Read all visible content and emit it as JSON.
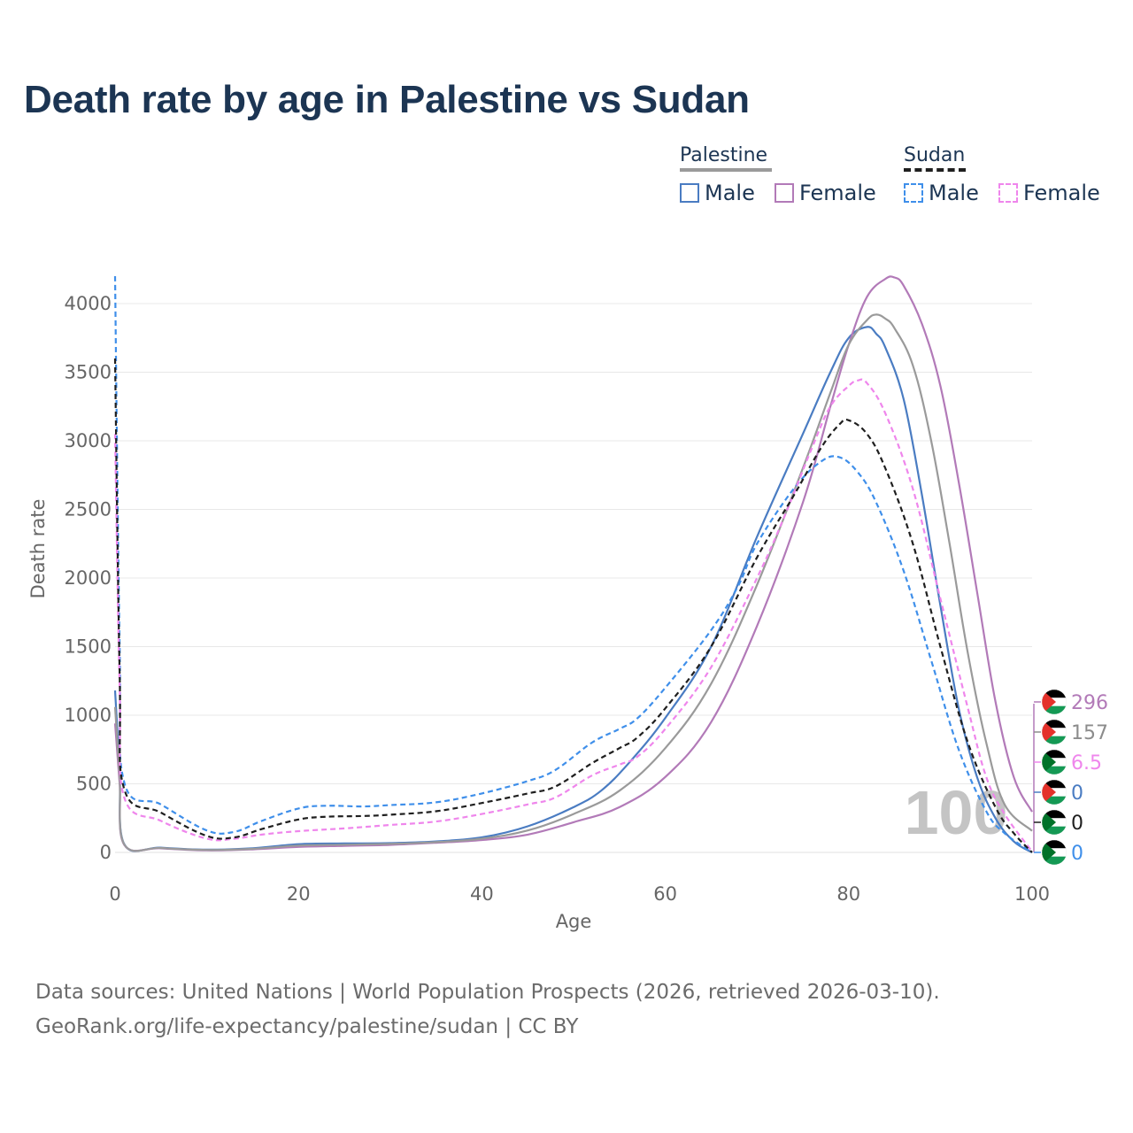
{
  "title": "Death rate by age in Palestine vs Sudan",
  "legend": {
    "groups": [
      {
        "label": "Palestine",
        "items": [
          {
            "label": "Male",
            "color": "#4a7cc2",
            "dashed": false
          },
          {
            "label": "Female",
            "color": "#b27ab8",
            "dashed": false
          }
        ]
      },
      {
        "label": "Sudan",
        "items": [
          {
            "label": "Male",
            "color": "#3f8fea",
            "dashed": true
          },
          {
            "label": "Female",
            "color": "#ef86ec",
            "dashed": true
          }
        ]
      }
    ]
  },
  "colors": {
    "palestine_male": "#4a7cc2",
    "palestine_female": "#b27ab8",
    "palestine_total": "#9a9a9a",
    "sudan_male": "#3f8fea",
    "sudan_female": "#ef86ec",
    "sudan_total": "#1f1f1f",
    "grid": "#e8e8e8",
    "title": "#1c3553"
  },
  "current_age_overlay": "100",
  "end_labels": [
    {
      "value": "296",
      "country": "Palestine",
      "series": "Palestine Female",
      "color": "#b27ab8"
    },
    {
      "value": "157",
      "country": "Palestine",
      "series": "Palestine Total",
      "color": "#8c8c8c"
    },
    {
      "value": "6.5",
      "country": "Sudan",
      "series": "Sudan Female",
      "color": "#ef86ec"
    },
    {
      "value": "0",
      "country": "Palestine",
      "series": "Palestine Male",
      "color": "#4a7cc2"
    },
    {
      "value": "0",
      "country": "Sudan",
      "series": "Sudan Total",
      "color": "#1f1f1f"
    },
    {
      "value": "0",
      "country": "Sudan",
      "series": "Sudan Male",
      "color": "#3f8fea"
    }
  ],
  "footer": {
    "line1": "Data sources: United Nations | World Population Prospects (2026, retrieved 2026-03-10).",
    "line2": "GeoRank.org/life-expectancy/palestine/sudan | CC BY"
  },
  "chart_data": {
    "type": "line",
    "title": "Death rate by age in Palestine vs Sudan",
    "xlabel": "Age",
    "ylabel": "Death rate",
    "xlim": [
      0,
      100
    ],
    "ylim": [
      0,
      4200
    ],
    "xticks": [
      0,
      20,
      40,
      60,
      80,
      100
    ],
    "yticks": [
      0,
      500,
      1000,
      1500,
      2000,
      2500,
      3000,
      3500,
      4000
    ],
    "grid": true,
    "legend_position": "top-right",
    "series": [
      {
        "name": "Palestine Male",
        "country": "Palestine",
        "color": "#4a7cc2",
        "dashed": false,
        "width": 2.2,
        "points": [
          [
            0,
            1180
          ],
          [
            0.5,
            600
          ],
          [
            1,
            60
          ],
          [
            5,
            35
          ],
          [
            10,
            20
          ],
          [
            15,
            30
          ],
          [
            20,
            60
          ],
          [
            25,
            65
          ],
          [
            30,
            68
          ],
          [
            35,
            80
          ],
          [
            40,
            110
          ],
          [
            45,
            190
          ],
          [
            50,
            330
          ],
          [
            53,
            450
          ],
          [
            56,
            650
          ],
          [
            60,
            980
          ],
          [
            65,
            1500
          ],
          [
            70,
            2300
          ],
          [
            75,
            3050
          ],
          [
            78,
            3500
          ],
          [
            80,
            3750
          ],
          [
            82,
            3830
          ],
          [
            83,
            3780
          ],
          [
            84,
            3680
          ],
          [
            86,
            3300
          ],
          [
            88,
            2600
          ],
          [
            90,
            1800
          ],
          [
            92,
            1050
          ],
          [
            94,
            550
          ],
          [
            96,
            250
          ],
          [
            98,
            80
          ],
          [
            100,
            0
          ]
        ]
      },
      {
        "name": "Palestine Female",
        "country": "Palestine",
        "color": "#b27ab8",
        "dashed": false,
        "width": 2.2,
        "points": [
          [
            0,
            940
          ],
          [
            0.5,
            500
          ],
          [
            1,
            55
          ],
          [
            5,
            30
          ],
          [
            10,
            15
          ],
          [
            15,
            22
          ],
          [
            20,
            40
          ],
          [
            25,
            48
          ],
          [
            30,
            55
          ],
          [
            35,
            70
          ],
          [
            40,
            90
          ],
          [
            45,
            130
          ],
          [
            50,
            220
          ],
          [
            55,
            330
          ],
          [
            60,
            550
          ],
          [
            65,
            950
          ],
          [
            70,
            1650
          ],
          [
            75,
            2550
          ],
          [
            78,
            3250
          ],
          [
            80,
            3700
          ],
          [
            82,
            4050
          ],
          [
            84,
            4180
          ],
          [
            85,
            4190
          ],
          [
            86,
            4130
          ],
          [
            88,
            3850
          ],
          [
            90,
            3400
          ],
          [
            92,
            2700
          ],
          [
            94,
            1900
          ],
          [
            96,
            1100
          ],
          [
            98,
            550
          ],
          [
            100,
            296
          ]
        ]
      },
      {
        "name": "Palestine Total",
        "country": "Palestine",
        "color": "#9a9a9a",
        "dashed": false,
        "width": 2.2,
        "points": [
          [
            0,
            1060
          ],
          [
            0.5,
            550
          ],
          [
            1,
            58
          ],
          [
            5,
            32
          ],
          [
            10,
            18
          ],
          [
            15,
            26
          ],
          [
            20,
            50
          ],
          [
            25,
            56
          ],
          [
            30,
            62
          ],
          [
            35,
            75
          ],
          [
            40,
            100
          ],
          [
            45,
            160
          ],
          [
            50,
            280
          ],
          [
            55,
            450
          ],
          [
            60,
            760
          ],
          [
            65,
            1230
          ],
          [
            70,
            1950
          ],
          [
            75,
            2800
          ],
          [
            78,
            3350
          ],
          [
            80,
            3700
          ],
          [
            82,
            3880
          ],
          [
            83,
            3920
          ],
          [
            84,
            3890
          ],
          [
            85,
            3820
          ],
          [
            87,
            3550
          ],
          [
            89,
            3000
          ],
          [
            91,
            2250
          ],
          [
            93,
            1450
          ],
          [
            95,
            800
          ],
          [
            97,
            350
          ],
          [
            100,
            157
          ]
        ]
      },
      {
        "name": "Sudan Male",
        "country": "Sudan",
        "color": "#3f8fea",
        "dashed": true,
        "width": 2.2,
        "points": [
          [
            0,
            4200
          ],
          [
            0.5,
            1500
          ],
          [
            1,
            510
          ],
          [
            5,
            350
          ],
          [
            10,
            160
          ],
          [
            13,
            150
          ],
          [
            16,
            230
          ],
          [
            20,
            320
          ],
          [
            23,
            340
          ],
          [
            27,
            335
          ],
          [
            30,
            345
          ],
          [
            35,
            365
          ],
          [
            40,
            430
          ],
          [
            45,
            520
          ],
          [
            48,
            600
          ],
          [
            52,
            800
          ],
          [
            55,
            900
          ],
          [
            57,
            980
          ],
          [
            60,
            1200
          ],
          [
            65,
            1620
          ],
          [
            68,
            1950
          ],
          [
            70,
            2250
          ],
          [
            74,
            2650
          ],
          [
            77,
            2850
          ],
          [
            79,
            2880
          ],
          [
            81,
            2770
          ],
          [
            83,
            2550
          ],
          [
            86,
            2050
          ],
          [
            89,
            1400
          ],
          [
            92,
            750
          ],
          [
            95,
            300
          ],
          [
            97,
            140
          ],
          [
            100,
            0
          ]
        ]
      },
      {
        "name": "Sudan Female",
        "country": "Sudan",
        "color": "#ef86ec",
        "dashed": true,
        "width": 2.2,
        "points": [
          [
            0,
            3050
          ],
          [
            0.5,
            1200
          ],
          [
            1,
            400
          ],
          [
            5,
            230
          ],
          [
            10,
            100
          ],
          [
            13,
            100
          ],
          [
            16,
            130
          ],
          [
            20,
            155
          ],
          [
            25,
            175
          ],
          [
            30,
            200
          ],
          [
            35,
            225
          ],
          [
            40,
            280
          ],
          [
            45,
            350
          ],
          [
            48,
            400
          ],
          [
            52,
            560
          ],
          [
            55,
            640
          ],
          [
            57,
            700
          ],
          [
            60,
            900
          ],
          [
            65,
            1350
          ],
          [
            70,
            2000
          ],
          [
            73,
            2450
          ],
          [
            76,
            2950
          ],
          [
            78,
            3250
          ],
          [
            80,
            3400
          ],
          [
            81,
            3440
          ],
          [
            82,
            3420
          ],
          [
            84,
            3200
          ],
          [
            87,
            2650
          ],
          [
            90,
            1850
          ],
          [
            93,
            1050
          ],
          [
            95,
            550
          ],
          [
            97,
            280
          ],
          [
            100,
            6.5
          ]
        ]
      },
      {
        "name": "Sudan Total",
        "country": "Sudan",
        "color": "#1f1f1f",
        "dashed": true,
        "width": 2.2,
        "points": [
          [
            0,
            3600
          ],
          [
            0.5,
            1300
          ],
          [
            1,
            460
          ],
          [
            5,
            290
          ],
          [
            10,
            120
          ],
          [
            13,
            110
          ],
          [
            16,
            170
          ],
          [
            20,
            240
          ],
          [
            23,
            260
          ],
          [
            27,
            265
          ],
          [
            30,
            275
          ],
          [
            35,
            300
          ],
          [
            40,
            360
          ],
          [
            45,
            430
          ],
          [
            48,
            480
          ],
          [
            52,
            650
          ],
          [
            55,
            760
          ],
          [
            57,
            840
          ],
          [
            60,
            1050
          ],
          [
            65,
            1500
          ],
          [
            70,
            2150
          ],
          [
            74,
            2600
          ],
          [
            77,
            2950
          ],
          [
            79,
            3120
          ],
          [
            80,
            3150
          ],
          [
            82,
            3050
          ],
          [
            84,
            2800
          ],
          [
            87,
            2250
          ],
          [
            90,
            1500
          ],
          [
            93,
            800
          ],
          [
            96,
            330
          ],
          [
            98,
            140
          ],
          [
            100,
            0
          ]
        ]
      }
    ]
  }
}
